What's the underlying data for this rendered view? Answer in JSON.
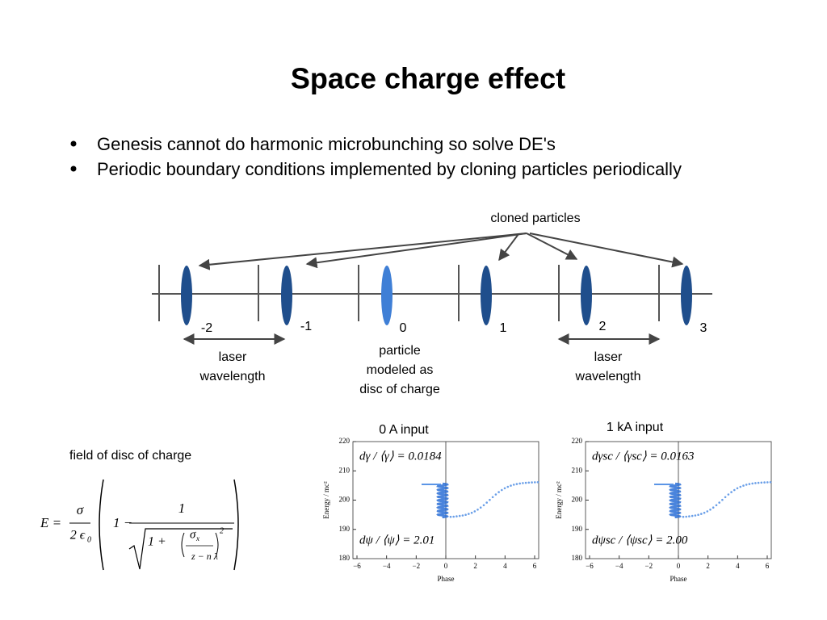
{
  "title": "Space charge effect",
  "bullets": [
    "Genesis cannot do harmonic microbunching so solve DE's",
    "Periodic boundary conditions implemented by cloning particles periodically"
  ],
  "diagram": {
    "top_label": "cloned particles",
    "indices": [
      "-2",
      "-1",
      "0",
      "1",
      "2",
      "3"
    ],
    "left_label": [
      "laser",
      "wavelength"
    ],
    "center_label": [
      "particle",
      "modeled as",
      "disc of charge"
    ],
    "right_label": [
      "laser",
      "wavelength"
    ]
  },
  "formula": {
    "caption": "field of disc of charge",
    "parts": [
      "E =",
      "σ",
      "2 ϵ",
      "0",
      "1 −",
      "1",
      "1 +",
      "σ",
      "x",
      "z − n λ",
      "2"
    ]
  },
  "plots": [
    {
      "title": "0 A input",
      "y_label": "Energy / mc²",
      "x_label": "Phase",
      "yticks": [
        "220",
        "210",
        "200",
        "190",
        "180"
      ],
      "xticks": [
        "−6",
        "−4",
        "−2",
        "0",
        "2",
        "4",
        "6"
      ],
      "annotations": [
        "dγ / ⟨γ⟩ = 0.0184",
        "dψ / ⟨ψ⟩ = 2.01"
      ]
    },
    {
      "title": "1 kA input",
      "y_label": "Energy / mc²",
      "x_label": "Phase",
      "yticks": [
        "220",
        "210",
        "200",
        "190",
        "180"
      ],
      "xticks": [
        "−6",
        "−4",
        "−2",
        "0",
        "2",
        "4",
        "6"
      ],
      "annotations": [
        "dγsc / ⟨γsc⟩ = 0.0163",
        "dψsc / ⟨ψsc⟩ = 2.00"
      ]
    }
  ]
}
